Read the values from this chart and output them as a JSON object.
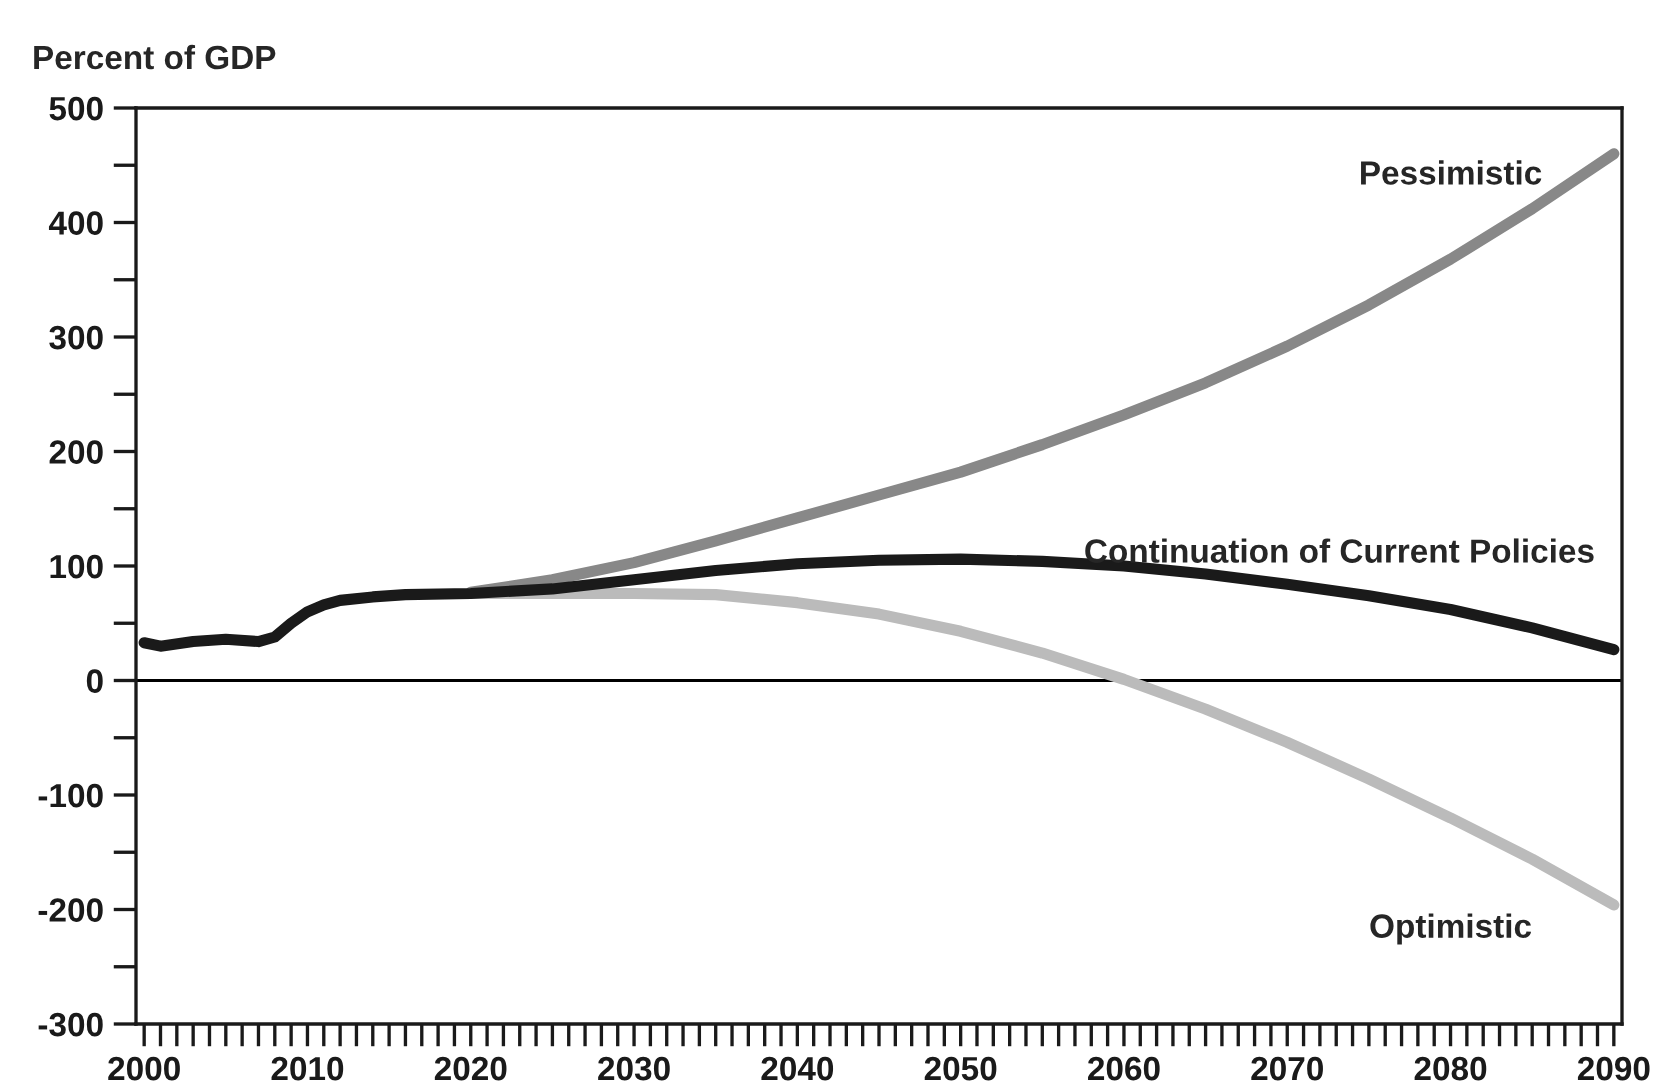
{
  "chart_data": {
    "type": "line",
    "ylabel": "Percent of GDP",
    "xlim": [
      1999.5,
      2090.5
    ],
    "ylim": [
      -300,
      500
    ],
    "xticks": [
      {
        "value": 2000,
        "label": "2000"
      },
      {
        "value": 2001,
        "label": null
      },
      {
        "value": 2002,
        "label": null
      },
      {
        "value": 2003,
        "label": null
      },
      {
        "value": 2004,
        "label": null
      },
      {
        "value": 2005,
        "label": null
      },
      {
        "value": 2006,
        "label": null
      },
      {
        "value": 2007,
        "label": null
      },
      {
        "value": 2008,
        "label": null
      },
      {
        "value": 2009,
        "label": null
      },
      {
        "value": 2010,
        "label": "2010"
      },
      {
        "value": 2011,
        "label": null
      },
      {
        "value": 2012,
        "label": null
      },
      {
        "value": 2013,
        "label": null
      },
      {
        "value": 2014,
        "label": null
      },
      {
        "value": 2015,
        "label": null
      },
      {
        "value": 2016,
        "label": null
      },
      {
        "value": 2017,
        "label": null
      },
      {
        "value": 2018,
        "label": null
      },
      {
        "value": 2019,
        "label": null
      },
      {
        "value": 2020,
        "label": "2020"
      },
      {
        "value": 2021,
        "label": null
      },
      {
        "value": 2022,
        "label": null
      },
      {
        "value": 2023,
        "label": null
      },
      {
        "value": 2024,
        "label": null
      },
      {
        "value": 2025,
        "label": null
      },
      {
        "value": 2026,
        "label": null
      },
      {
        "value": 2027,
        "label": null
      },
      {
        "value": 2028,
        "label": null
      },
      {
        "value": 2029,
        "label": null
      },
      {
        "value": 2030,
        "label": "2030"
      },
      {
        "value": 2031,
        "label": null
      },
      {
        "value": 2032,
        "label": null
      },
      {
        "value": 2033,
        "label": null
      },
      {
        "value": 2034,
        "label": null
      },
      {
        "value": 2035,
        "label": null
      },
      {
        "value": 2036,
        "label": null
      },
      {
        "value": 2037,
        "label": null
      },
      {
        "value": 2038,
        "label": null
      },
      {
        "value": 2039,
        "label": null
      },
      {
        "value": 2040,
        "label": "2040"
      },
      {
        "value": 2041,
        "label": null
      },
      {
        "value": 2042,
        "label": null
      },
      {
        "value": 2043,
        "label": null
      },
      {
        "value": 2044,
        "label": null
      },
      {
        "value": 2045,
        "label": null
      },
      {
        "value": 2046,
        "label": null
      },
      {
        "value": 2047,
        "label": null
      },
      {
        "value": 2048,
        "label": null
      },
      {
        "value": 2049,
        "label": null
      },
      {
        "value": 2050,
        "label": "2050"
      },
      {
        "value": 2051,
        "label": null
      },
      {
        "value": 2052,
        "label": null
      },
      {
        "value": 2053,
        "label": null
      },
      {
        "value": 2054,
        "label": null
      },
      {
        "value": 2055,
        "label": null
      },
      {
        "value": 2056,
        "label": null
      },
      {
        "value": 2057,
        "label": null
      },
      {
        "value": 2058,
        "label": null
      },
      {
        "value": 2059,
        "label": null
      },
      {
        "value": 2060,
        "label": "2060"
      },
      {
        "value": 2061,
        "label": null
      },
      {
        "value": 2062,
        "label": null
      },
      {
        "value": 2063,
        "label": null
      },
      {
        "value": 2064,
        "label": null
      },
      {
        "value": 2065,
        "label": null
      },
      {
        "value": 2066,
        "label": null
      },
      {
        "value": 2067,
        "label": null
      },
      {
        "value": 2068,
        "label": null
      },
      {
        "value": 2069,
        "label": null
      },
      {
        "value": 2070,
        "label": "2070"
      },
      {
        "value": 2071,
        "label": null
      },
      {
        "value": 2072,
        "label": null
      },
      {
        "value": 2073,
        "label": null
      },
      {
        "value": 2074,
        "label": null
      },
      {
        "value": 2075,
        "label": null
      },
      {
        "value": 2076,
        "label": null
      },
      {
        "value": 2077,
        "label": null
      },
      {
        "value": 2078,
        "label": null
      },
      {
        "value": 2079,
        "label": null
      },
      {
        "value": 2080,
        "label": "2080"
      },
      {
        "value": 2081,
        "label": null
      },
      {
        "value": 2082,
        "label": null
      },
      {
        "value": 2083,
        "label": null
      },
      {
        "value": 2084,
        "label": null
      },
      {
        "value": 2085,
        "label": null
      },
      {
        "value": 2086,
        "label": null
      },
      {
        "value": 2087,
        "label": null
      },
      {
        "value": 2088,
        "label": null
      },
      {
        "value": 2089,
        "label": null
      },
      {
        "value": 2090,
        "label": "2090"
      }
    ],
    "yticks": [
      -300,
      {
        "value": -250,
        "label": null
      },
      -200,
      {
        "value": -150,
        "label": null
      },
      -100,
      {
        "value": -50,
        "label": null
      },
      0,
      {
        "value": 50,
        "label": null
      },
      100,
      {
        "value": 150,
        "label": null
      },
      200,
      {
        "value": 250,
        "label": null
      },
      300,
      {
        "value": 350,
        "label": null
      },
      400,
      {
        "value": 450,
        "label": null
      },
      500
    ],
    "grid": false,
    "legend": false,
    "marker": "none",
    "line_style": "solid",
    "ref_lines": [
      {
        "axis": "y",
        "value": 0,
        "color": "#000000"
      }
    ],
    "series": [
      {
        "name": "Pessimistic",
        "color": "#888888",
        "x": [
          2020,
          2025,
          2030,
          2035,
          2040,
          2045,
          2050,
          2055,
          2060,
          2065,
          2070,
          2075,
          2080,
          2085,
          2090
        ],
        "values": [
          77,
          88,
          103,
          122,
          142,
          162,
          182,
          206,
          232,
          260,
          292,
          328,
          368,
          412,
          460
        ]
      },
      {
        "name": "Optimistic",
        "color": "#bbbbbb",
        "x": [
          2020,
          2025,
          2030,
          2035,
          2040,
          2045,
          2050,
          2055,
          2060,
          2065,
          2070,
          2075,
          2080,
          2085,
          2090
        ],
        "values": [
          76,
          76,
          76,
          75,
          68,
          58,
          43,
          24,
          1,
          -25,
          -54,
          -86,
          -120,
          -156,
          -196
        ]
      },
      {
        "name": "Continuation of Current Policies",
        "color": "#1a1a1a",
        "x": [
          2000,
          2001,
          2003,
          2005,
          2007,
          2008,
          2009,
          2010,
          2011,
          2012,
          2014,
          2016,
          2020,
          2025,
          2030,
          2035,
          2040,
          2045,
          2050,
          2055,
          2060,
          2065,
          2070,
          2075,
          2080,
          2085,
          2090
        ],
        "values": [
          33,
          30,
          34,
          36,
          34,
          38,
          50,
          60,
          66,
          70,
          73,
          75,
          76,
          80,
          88,
          96,
          102,
          105,
          106,
          104,
          100,
          93,
          84,
          74,
          62,
          46,
          27
        ]
      }
    ]
  }
}
